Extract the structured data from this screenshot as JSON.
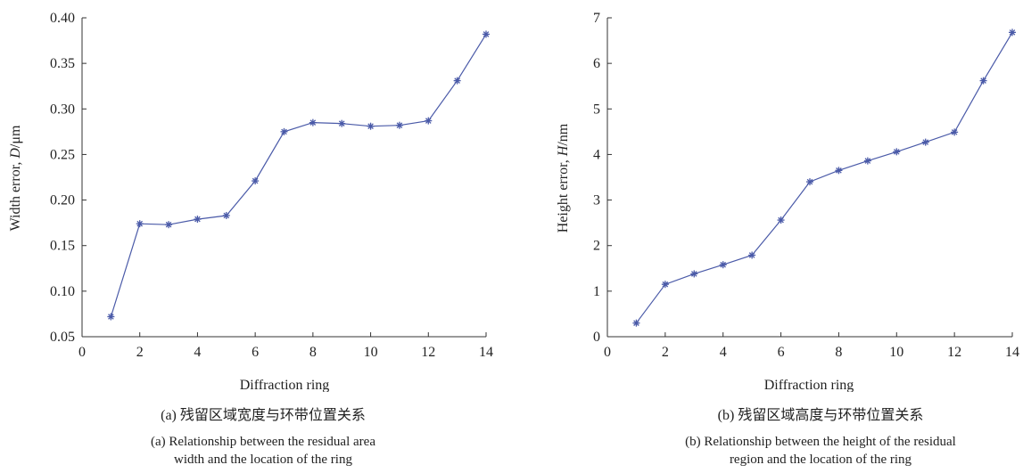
{
  "chart_data": [
    {
      "type": "line",
      "xlabel": "Diffraction ring",
      "ylabel": "Width error, D/μm",
      "ylabel_parts": {
        "prefix": "Width error, ",
        "symbol": "D",
        "unit": "/μm"
      },
      "xlim": [
        0,
        14
      ],
      "ylim": [
        0.05,
        0.4
      ],
      "xticks": [
        "0",
        "2",
        "4",
        "6",
        "8",
        "10",
        "12",
        "14"
      ],
      "yticks": [
        "0.05",
        "0.10",
        "0.15",
        "0.20",
        "0.25",
        "0.30",
        "0.35",
        "0.40"
      ],
      "grid": false,
      "marker": "asterisk",
      "color": "#4a5aa8",
      "x": [
        1,
        2,
        3,
        4,
        5,
        6,
        7,
        8,
        9,
        10,
        11,
        12,
        13,
        14
      ],
      "y": [
        0.072,
        0.174,
        0.173,
        0.179,
        0.183,
        0.221,
        0.275,
        0.285,
        0.284,
        0.281,
        0.282,
        0.287,
        0.331,
        0.382
      ],
      "caption_zh": "(a) 残留区域宽度与环带位置关系",
      "caption_en": "(a) Relationship between the residual area\nwidth and the location of the ring"
    },
    {
      "type": "line",
      "xlabel": "Diffraction ring",
      "ylabel": "Height error, H/nm",
      "ylabel_parts": {
        "prefix": "Height error, ",
        "symbol": "H",
        "unit": "/nm"
      },
      "xlim": [
        0,
        14
      ],
      "ylim": [
        0,
        7
      ],
      "xticks": [
        "0",
        "2",
        "4",
        "6",
        "8",
        "10",
        "12",
        "14"
      ],
      "yticks": [
        "0",
        "1",
        "2",
        "3",
        "4",
        "5",
        "6",
        "7"
      ],
      "grid": false,
      "marker": "asterisk",
      "color": "#4a5aa8",
      "x": [
        1,
        2,
        3,
        4,
        5,
        6,
        7,
        8,
        9,
        10,
        11,
        12,
        13,
        14
      ],
      "y": [
        0.3,
        1.15,
        1.38,
        1.58,
        1.79,
        2.56,
        3.4,
        3.65,
        3.86,
        4.06,
        4.27,
        4.49,
        5.62,
        6.68
      ],
      "caption_zh": "(b) 残留区域高度与环带位置关系",
      "caption_en": "(b) Relationship between the height of the residual\nregion and the location of the ring"
    }
  ]
}
